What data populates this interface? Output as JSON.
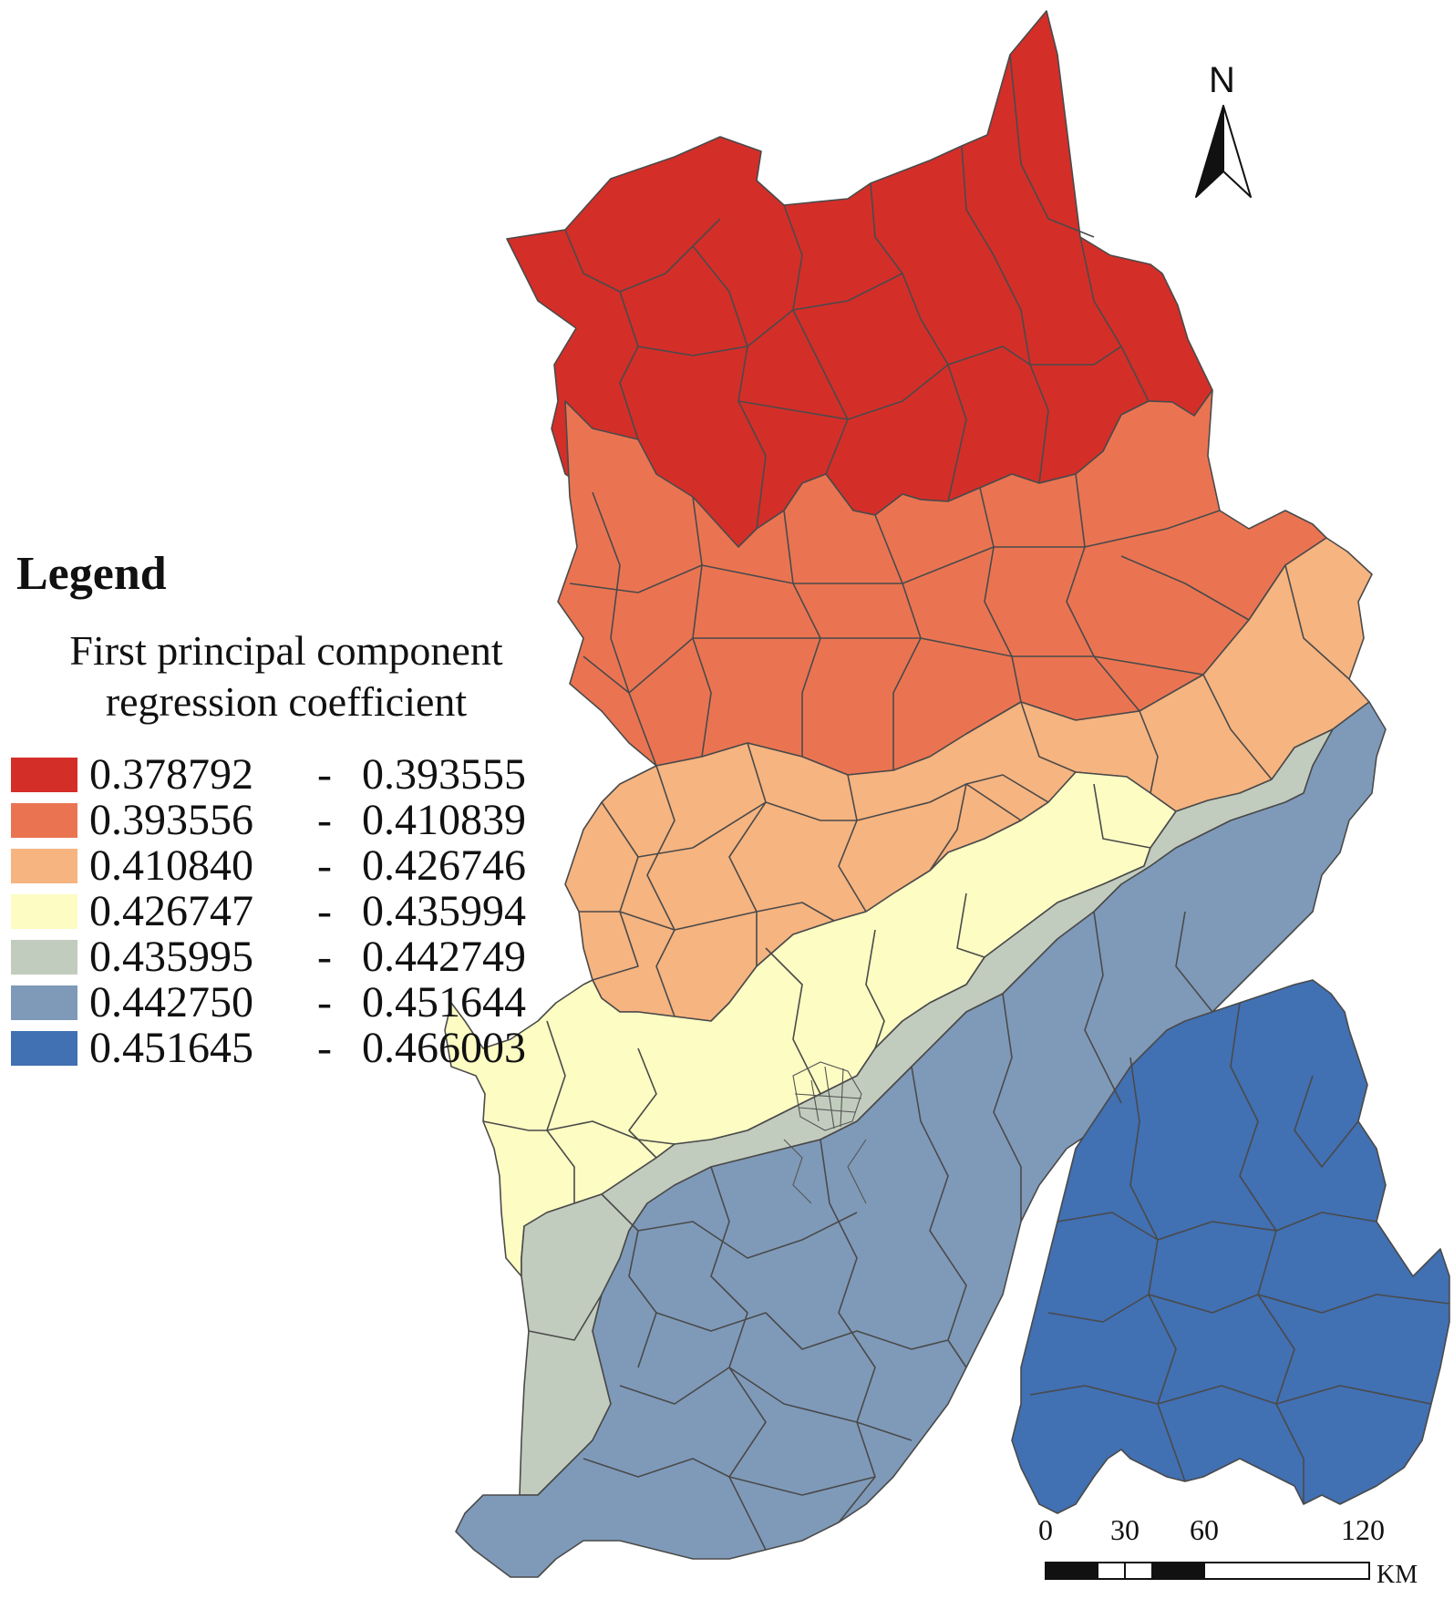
{
  "legend": {
    "heading": "Legend",
    "subtitle_line1": "First principal component",
    "subtitle_line2": "regression coefficient",
    "separator": "-",
    "classes": [
      {
        "min": "0.378792",
        "max": "0.393555",
        "color": "#d42e29"
      },
      {
        "min": "0.393556",
        "max": "0.410839",
        "color": "#ea7452"
      },
      {
        "min": "0.410840",
        "max": "0.426746",
        "color": "#f6b480"
      },
      {
        "min": "0.426747",
        "max": "0.435994",
        "color": "#fcfcc3"
      },
      {
        "min": "0.435995",
        "max": "0.442749",
        "color": "#c2ccbe"
      },
      {
        "min": "0.442750",
        "max": "0.451644",
        "color": "#7f9ab9"
      },
      {
        "min": "0.451645",
        "max": "0.466003",
        "color": "#4170b3"
      }
    ]
  },
  "north_arrow": {
    "label": "N"
  },
  "scale_bar": {
    "ticks": [
      "0",
      "30",
      "60",
      "120"
    ],
    "unit": "KM"
  },
  "colors": {
    "outline": "#4a4a4a",
    "background": "#ffffff"
  }
}
